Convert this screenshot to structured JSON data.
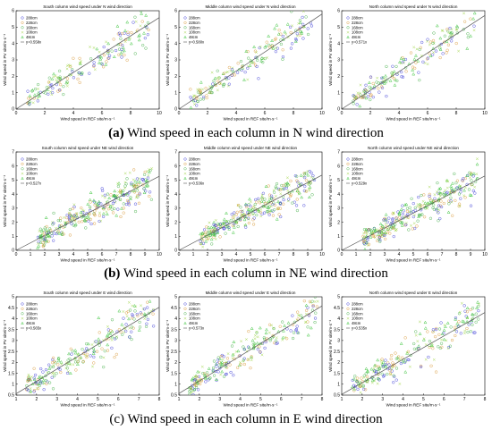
{
  "legend_labels": [
    "288cm",
    "228cm",
    "168cm",
    "108cm",
    "48cm"
  ],
  "marker_colors": [
    "#3b3bd6",
    "#d99a3a",
    "#46b04a",
    "#9ad13c",
    "#36c236"
  ],
  "fit_line_color": "#555555",
  "captions": {
    "a_letter": "(a)",
    "a_text": " Wind speed in each column in N wind direction",
    "b_letter": "(b)",
    "b_text": " Wind speed in each column in NE wind direction",
    "c_text": "(c) Wind speed in each column in E wind direction"
  },
  "chart_data": [
    {
      "type": "scatter",
      "title": "South column wind speed under N wind direction",
      "xlabel": "Wind speed in REF site/m·s⁻¹",
      "ylabel": "Wind speed in PV site/m·s⁻¹",
      "xlim": [
        0,
        10
      ],
      "ylim": [
        0,
        6
      ],
      "xticks": [
        "0",
        "2",
        "4",
        "6",
        "8",
        "10"
      ],
      "yticks": [
        "0",
        "1",
        "2",
        "3",
        "4",
        "5",
        "6"
      ],
      "fit": "y=0.558x",
      "slope": 0.558,
      "xspread": [
        0.8,
        9.3
      ],
      "noise": 0.55,
      "npts": 180,
      "legend": "top-left",
      "grid": false
    },
    {
      "type": "scatter",
      "title": "Middle column wind speed under N wind direction",
      "xlabel": "Wind speed in REF site/m·s⁻¹",
      "ylabel": "Wind speed in PV site/m·s⁻¹",
      "xlim": [
        0,
        10
      ],
      "ylim": [
        0,
        6
      ],
      "xticks": [
        "0",
        "2",
        "4",
        "6",
        "8",
        "10"
      ],
      "yticks": [
        "0",
        "1",
        "2",
        "3",
        "4",
        "5",
        "6"
      ],
      "fit": "y=0.580x",
      "slope": 0.58,
      "xspread": [
        0.8,
        9.3
      ],
      "noise": 0.5,
      "npts": 180,
      "legend": "top-left",
      "grid": false
    },
    {
      "type": "scatter",
      "title": "North column wind speed under N wind direction",
      "xlabel": "Wind speed in REF site/m·s⁻¹",
      "ylabel": "Wind speed in PV site/m·s⁻¹",
      "xlim": [
        0,
        10
      ],
      "ylim": [
        0,
        6
      ],
      "xticks": [
        "0",
        "2",
        "4",
        "6",
        "8",
        "10"
      ],
      "yticks": [
        "0",
        "1",
        "2",
        "3",
        "4",
        "5",
        "6"
      ],
      "fit": "y=0.571x",
      "slope": 0.571,
      "xspread": [
        0.8,
        9.3
      ],
      "noise": 0.55,
      "npts": 180,
      "legend": "top-left",
      "grid": false
    },
    {
      "type": "scatter",
      "title": "South column wind speed under NE wind direction",
      "xlabel": "Wind speed in REF site/m·s⁻¹",
      "ylabel": "Wind speed in PV site/m·s⁻¹",
      "xlim": [
        0,
        10
      ],
      "ylim": [
        0,
        7
      ],
      "xticks": [
        "0",
        "1",
        "2",
        "3",
        "4",
        "5",
        "6",
        "7",
        "8",
        "9",
        "10"
      ],
      "yticks": [
        "0",
        "1",
        "2",
        "3",
        "4",
        "5",
        "6",
        "7"
      ],
      "fit": "y=0.527x",
      "slope": 0.527,
      "xspread": [
        1.5,
        9.5
      ],
      "noise": 0.6,
      "npts": 320,
      "legend": "top-left",
      "grid": false
    },
    {
      "type": "scatter",
      "title": "Middle column wind speed under NE wind direction",
      "xlabel": "Wind speed in REF site/m·s⁻¹",
      "ylabel": "Wind speed in PV site/m·s⁻¹",
      "xlim": [
        0,
        10
      ],
      "ylim": [
        0,
        7
      ],
      "xticks": [
        "0",
        "1",
        "2",
        "3",
        "4",
        "5",
        "6",
        "7",
        "8",
        "9",
        "10"
      ],
      "yticks": [
        "0",
        "1",
        "2",
        "3",
        "4",
        "5",
        "6",
        "7"
      ],
      "fit": "y=0.536x",
      "slope": 0.536,
      "xspread": [
        1.5,
        9.5
      ],
      "noise": 0.6,
      "npts": 320,
      "legend": "top-left",
      "grid": false
    },
    {
      "type": "scatter",
      "title": "North column wind speed under NE wind direction",
      "xlabel": "Wind speed in REF site/m·s⁻¹",
      "ylabel": "Wind speed in PV site/m·s⁻¹",
      "xlim": [
        0,
        10
      ],
      "ylim": [
        0,
        7
      ],
      "xticks": [
        "0",
        "1",
        "2",
        "3",
        "4",
        "5",
        "6",
        "7",
        "8",
        "9",
        "10"
      ],
      "yticks": [
        "0",
        "1",
        "2",
        "3",
        "4",
        "5",
        "6",
        "7"
      ],
      "fit": "y=0.529x",
      "slope": 0.529,
      "xspread": [
        1.5,
        9.5
      ],
      "noise": 0.6,
      "npts": 320,
      "legend": "top-left",
      "grid": false
    },
    {
      "type": "scatter",
      "title": "South column wind speed under E wind direction",
      "xlabel": "Wind speed in REF site/m·s⁻¹",
      "ylabel": "Wind speed in PV site/m·s⁻¹",
      "xlim": [
        1,
        8
      ],
      "ylim": [
        0.5,
        5
      ],
      "xticks": [
        "1",
        "2",
        "3",
        "4",
        "5",
        "6",
        "7",
        "8"
      ],
      "yticks": [
        "0.5",
        "1",
        "1.5",
        "2",
        "2.5",
        "3",
        "3.5",
        "4",
        "4.5",
        "5"
      ],
      "fit": "y=0.565x",
      "slope": 0.565,
      "xspread": [
        1.5,
        7.8
      ],
      "noise": 0.45,
      "npts": 240,
      "legend": "top-left",
      "grid": false
    },
    {
      "type": "scatter",
      "title": "Middle column wind speed under E wind direction",
      "xlabel": "Wind speed in REF site/m·s⁻¹",
      "ylabel": "Wind speed in PV site/m·s⁻¹",
      "xlim": [
        1,
        8
      ],
      "ylim": [
        0.5,
        5
      ],
      "xticks": [
        "1",
        "2",
        "3",
        "4",
        "5",
        "6",
        "7",
        "8"
      ],
      "yticks": [
        "0.5",
        "1",
        "1.5",
        "2",
        "2.5",
        "3",
        "3.5",
        "4",
        "4.5",
        "5"
      ],
      "fit": "y=0.573x",
      "slope": 0.573,
      "xspread": [
        1.5,
        7.8
      ],
      "noise": 0.45,
      "npts": 240,
      "legend": "top-left",
      "grid": false
    },
    {
      "type": "scatter",
      "title": "North column wind speed under E wind direction",
      "xlabel": "Wind speed in REF site/m·s⁻¹",
      "ylabel": "Wind speed in PV site/m·s⁻¹",
      "xlim": [
        1,
        8
      ],
      "ylim": [
        0.5,
        5
      ],
      "xticks": [
        "1",
        "2",
        "3",
        "4",
        "5",
        "6",
        "7",
        "8"
      ],
      "yticks": [
        "0.5",
        "1",
        "1.5",
        "2",
        "2.5",
        "3",
        "3.5",
        "4",
        "4.5",
        "5"
      ],
      "fit": "y=0.535x",
      "slope": 0.535,
      "xspread": [
        1.5,
        7.8
      ],
      "noise": 0.45,
      "npts": 240,
      "legend": "top-left",
      "grid": false
    }
  ]
}
